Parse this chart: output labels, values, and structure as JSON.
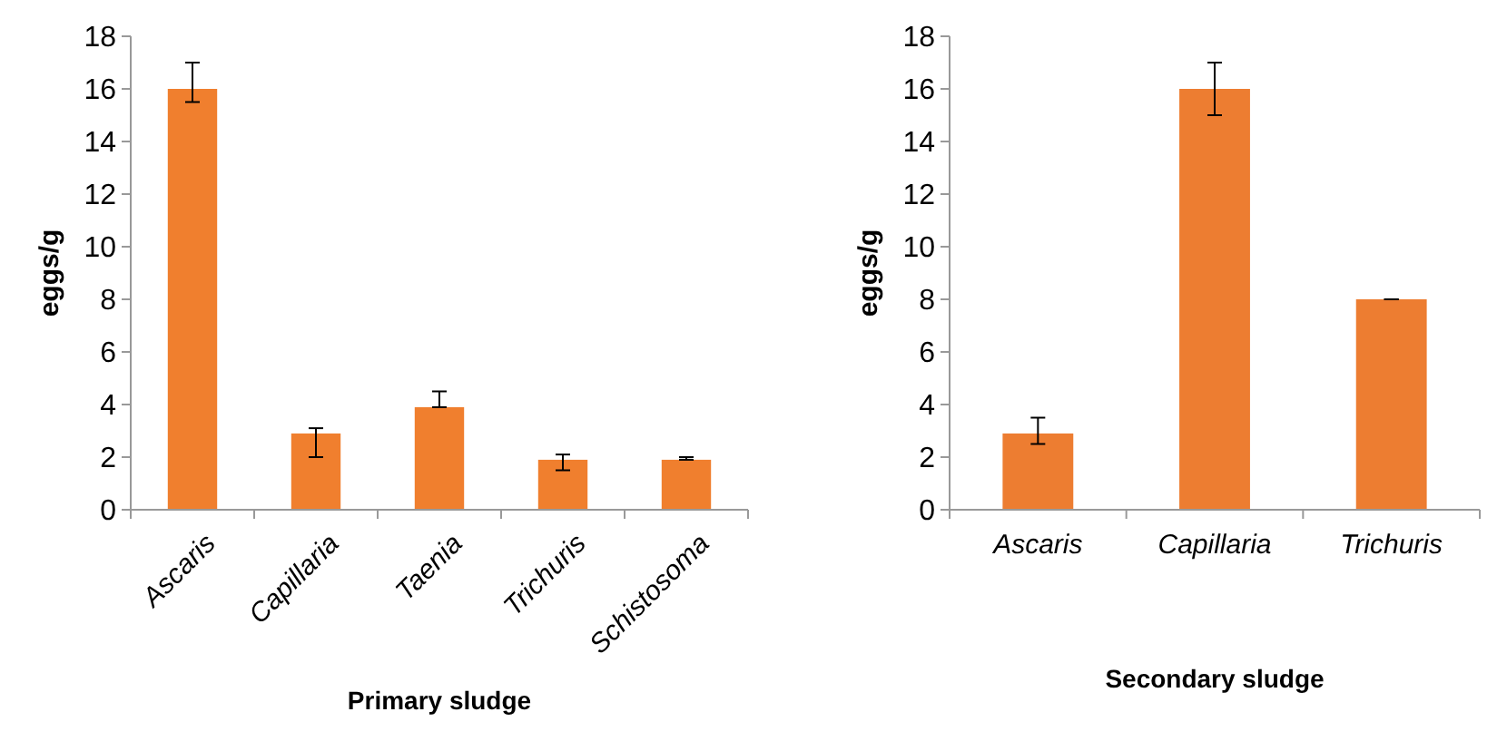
{
  "chart_data": [
    {
      "type": "bar",
      "xlabel": "Primary sludge",
      "ylabel": "eggs/g",
      "categories": [
        "Ascaris",
        "Capillaria",
        "Taenia",
        "Trichuris",
        "Schistosoma"
      ],
      "values": [
        16,
        2.9,
        3.9,
        1.9,
        1.9
      ],
      "errors": [
        [
          15.5,
          17
        ],
        [
          2,
          3.1
        ],
        [
          3.9,
          4.5
        ],
        [
          1.5,
          2.1
        ],
        [
          1.9,
          2
        ]
      ],
      "color": "#f07f2e",
      "ylim": [
        0,
        18
      ],
      "yticks": [
        0,
        2,
        4,
        6,
        8,
        10,
        12,
        14,
        16,
        18
      ]
    },
    {
      "type": "bar",
      "xlabel": "Secondary sludge",
      "ylabel": "eggs/g",
      "categories": [
        "Ascaris",
        "Capillaria",
        "Trichuris"
      ],
      "values": [
        2.9,
        16,
        8
      ],
      "errors": [
        [
          2.5,
          3.5
        ],
        [
          15,
          17
        ],
        [
          8,
          8
        ]
      ],
      "color": "#ed7d31",
      "ylim": [
        0,
        18
      ],
      "yticks": [
        0,
        2,
        4,
        6,
        8,
        10,
        12,
        14,
        16,
        18
      ]
    }
  ]
}
